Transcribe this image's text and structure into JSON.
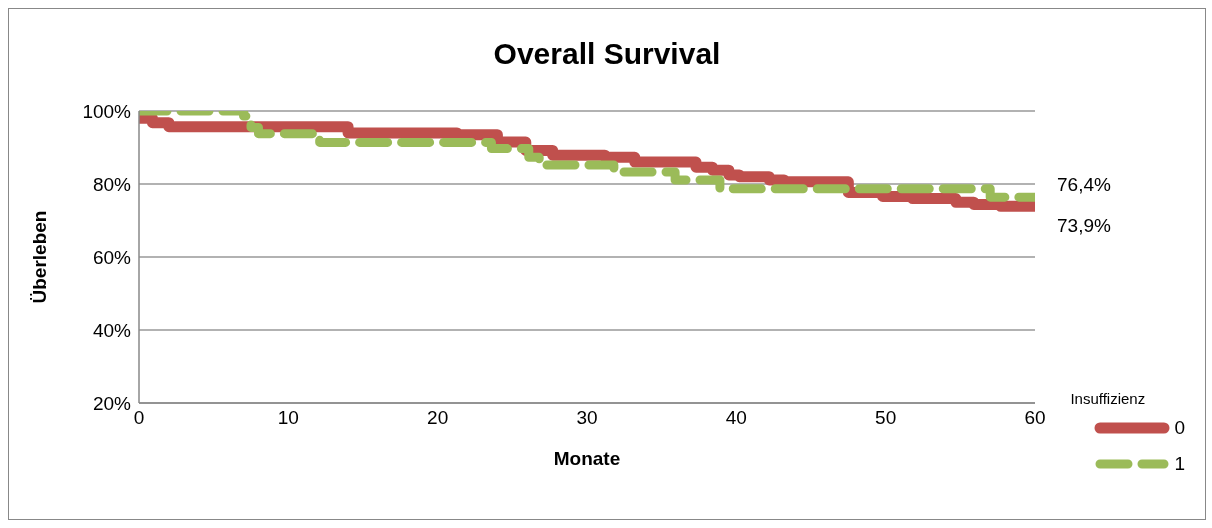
{
  "chart_data": {
    "type": "step",
    "title": "Overall Survival",
    "xlabel": "Monate",
    "ylabel": "Überleben",
    "legend_title": "Insuffizienz",
    "xlim": [
      0,
      60
    ],
    "xticks": [
      0,
      10,
      20,
      30,
      40,
      50,
      60
    ],
    "ylim": [
      20,
      100
    ],
    "yticks": [
      {
        "value": 20,
        "label": "20%"
      },
      {
        "value": 40,
        "label": "40%"
      },
      {
        "value": 60,
        "label": "60%"
      },
      {
        "value": 80,
        "label": "80%"
      },
      {
        "value": 100,
        "label": "100%"
      }
    ],
    "grid": "y",
    "legend": "bottom right",
    "series": [
      {
        "name": "0",
        "color": "#c0504d",
        "line_style": "solid",
        "x": [
          0,
          0.9,
          2,
          14,
          21.3,
          24,
          25.9,
          27.7,
          31.2,
          33.2,
          37.3,
          38.4,
          39.5,
          40.2,
          42.2,
          43.2,
          47.5,
          49.8,
          51.8,
          54.7,
          55.9,
          57.7,
          60
        ],
        "values": [
          98,
          96.8,
          95.7,
          94,
          93.5,
          91.5,
          89.2,
          87.9,
          87.3,
          86,
          84.6,
          83.8,
          82.5,
          82,
          81.1,
          80.6,
          77.7,
          76.6,
          76,
          75,
          74.4,
          73.9,
          73.9
        ]
      },
      {
        "name": "1",
        "color": "#9bbb59",
        "line_style": "dashed",
        "x": [
          0,
          7,
          7.5,
          8,
          12.1,
          23.6,
          26.1,
          26.8,
          31.8,
          35.9,
          38.9,
          57,
          60
        ],
        "values": [
          100,
          98.6,
          95.5,
          93.8,
          91.4,
          89.7,
          87.3,
          85.2,
          83.3,
          81.1,
          78.7,
          76.4,
          76.4
        ]
      }
    ],
    "annotations": [
      {
        "text": "76,4%",
        "x": 60,
        "y": 76.4
      },
      {
        "text": "73,9%",
        "x": 60,
        "y": 73.9
      }
    ]
  }
}
